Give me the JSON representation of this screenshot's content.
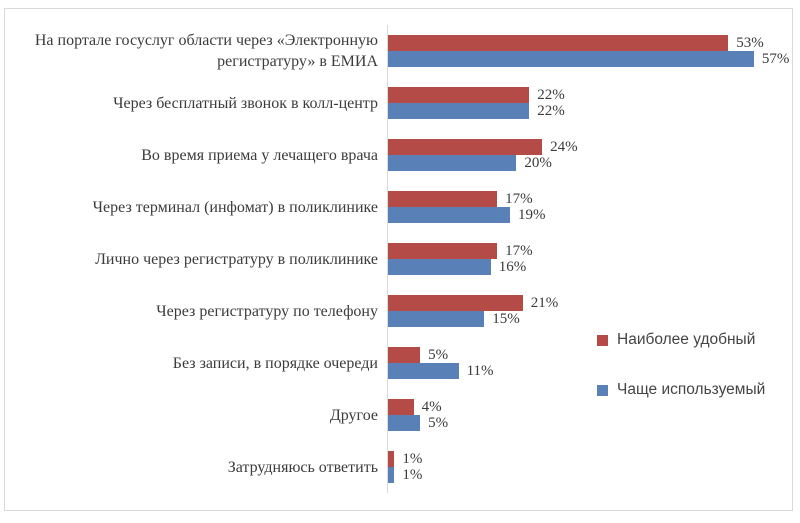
{
  "chart_data": {
    "type": "bar",
    "orientation": "horizontal",
    "title": "",
    "grid": false,
    "xmax": 62,
    "legend_position": "right-middle",
    "categories": [
      "На портале госуслуг области через «Электронную регистратуру» в ЕМИА",
      "Через бесплатный звонок в колл-центр",
      "Во время приема у лечащего врача",
      "Через терминал (инфомат) в поликлинике",
      "Лично через регистратуру в поликлинике",
      "Через регистратуру по телефону",
      "Без записи, в порядке очереди",
      "Другое",
      "Затрудняюсь ответить"
    ],
    "series": [
      {
        "name": "Наиболее удобный",
        "color": "#B44B47",
        "values": [
          53,
          22,
          24,
          17,
          17,
          21,
          5,
          4,
          1
        ],
        "labels": [
          "53%",
          "22%",
          "24%",
          "17%",
          "17%",
          "21%",
          "5%",
          "4%",
          "1%"
        ]
      },
      {
        "name": "Чаще используемый",
        "color": "#5A80B8",
        "values": [
          57,
          22,
          20,
          19,
          16,
          15,
          11,
          5,
          1
        ],
        "labels": [
          "57%",
          "22%",
          "20%",
          "19%",
          "16%",
          "15%",
          "11%",
          "5%",
          "1%"
        ]
      }
    ]
  }
}
